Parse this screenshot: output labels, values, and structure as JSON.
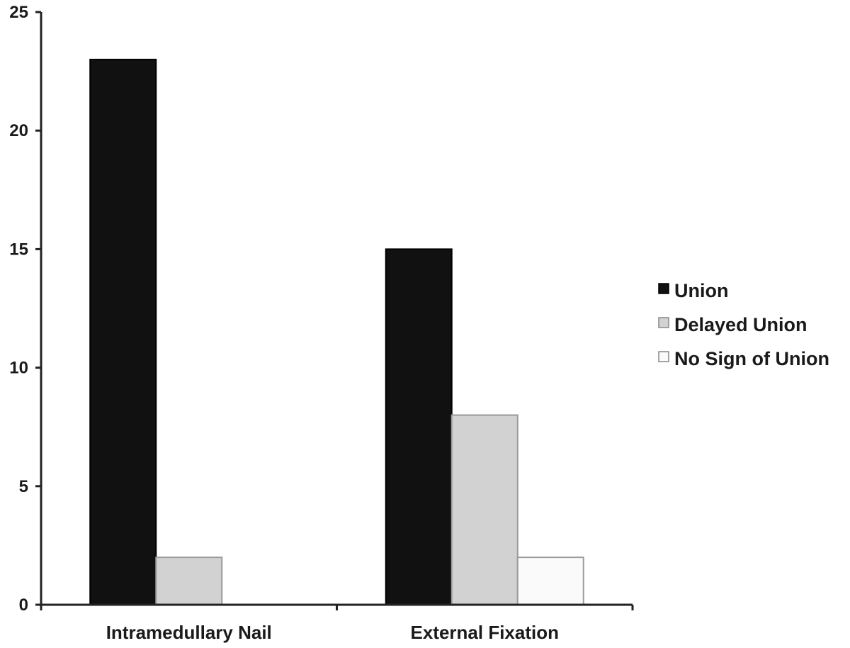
{
  "chart_data": {
    "type": "bar",
    "title": "",
    "xlabel": "",
    "ylabel": "",
    "categories": [
      "Intramedullary Nail",
      "External Fixation"
    ],
    "series": [
      {
        "name": "Union",
        "values": [
          23,
          15
        ],
        "color": "#111111"
      },
      {
        "name": "Delayed Union",
        "values": [
          2,
          8
        ],
        "color": "#d2d2d2"
      },
      {
        "name": "No Sign of Union",
        "values": [
          0,
          2
        ],
        "color": "#fafafa"
      }
    ],
    "ylim": [
      0,
      25
    ],
    "yticks": [
      0,
      5,
      10,
      15,
      20,
      25
    ],
    "grid": false,
    "legend_position": "right"
  }
}
